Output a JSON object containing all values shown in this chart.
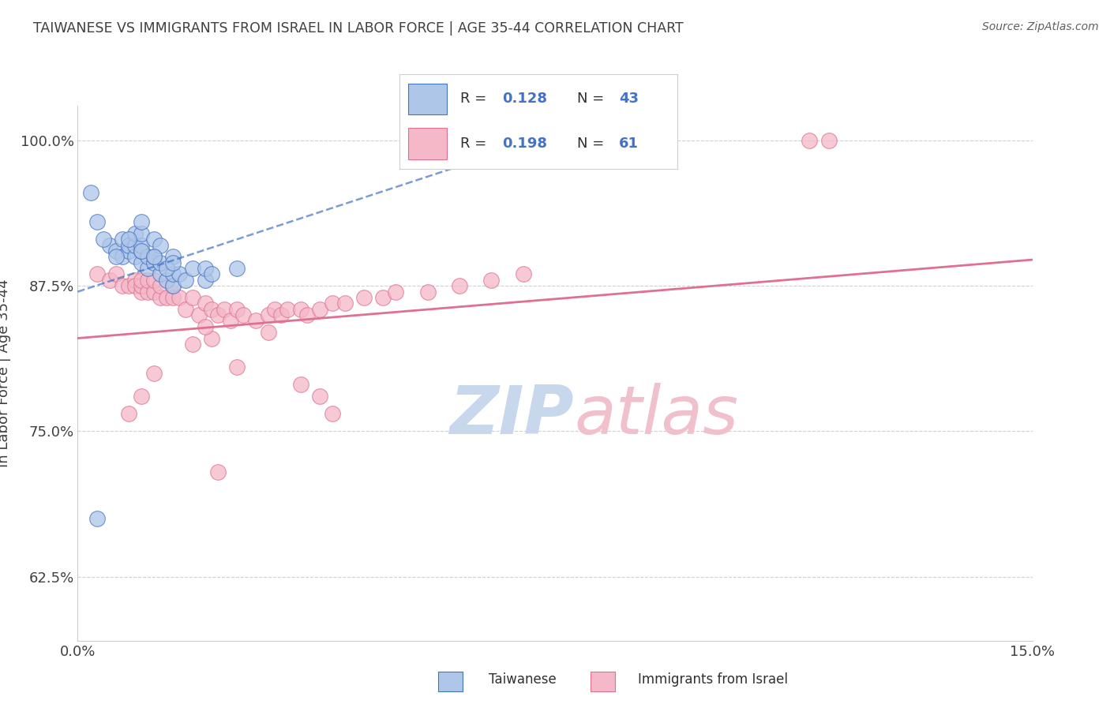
{
  "title": "TAIWANESE VS IMMIGRANTS FROM ISRAEL IN LABOR FORCE | AGE 35-44 CORRELATION CHART",
  "source_text": "Source: ZipAtlas.com",
  "ylabel": "In Labor Force | Age 35-44",
  "xlim": [
    0.0,
    15.0
  ],
  "ylim": [
    57.0,
    103.0
  ],
  "yticks": [
    62.5,
    75.0,
    87.5,
    100.0
  ],
  "ytick_labels": [
    "62.5%",
    "75.0%",
    "87.5%",
    "100.0%"
  ],
  "xticks": [
    0.0,
    15.0
  ],
  "xtick_labels": [
    "0.0%",
    "15.0%"
  ],
  "blue_color": "#aec6e8",
  "blue_edge_color": "#4472c4",
  "pink_color": "#f4b8c8",
  "pink_edge_color": "#e07090",
  "blue_line_color": "#4472c4",
  "pink_line_color": "#e07090",
  "label_color": "#4472c4",
  "title_color": "#404040",
  "grid_color": "#d0d0d0",
  "blue_x": [
    0.2,
    0.3,
    0.5,
    0.6,
    0.7,
    0.7,
    0.8,
    0.8,
    0.9,
    0.9,
    0.9,
    1.0,
    1.0,
    1.0,
    1.0,
    1.0,
    1.1,
    1.1,
    1.2,
    1.2,
    1.2,
    1.3,
    1.3,
    1.3,
    1.4,
    1.5,
    1.5,
    1.5,
    1.6,
    1.7,
    1.8,
    2.0,
    2.0,
    2.1,
    0.4,
    0.6,
    0.8,
    1.0,
    1.2,
    1.4,
    1.5,
    2.5,
    0.3
  ],
  "blue_y": [
    95.5,
    93.0,
    91.0,
    90.5,
    91.5,
    90.0,
    90.5,
    91.0,
    90.0,
    91.0,
    92.0,
    89.5,
    90.5,
    91.0,
    92.0,
    93.0,
    89.0,
    90.0,
    89.5,
    90.0,
    91.5,
    88.5,
    89.5,
    91.0,
    88.0,
    87.5,
    88.5,
    90.0,
    88.5,
    88.0,
    89.0,
    88.0,
    89.0,
    88.5,
    91.5,
    90.0,
    91.5,
    90.5,
    90.0,
    89.0,
    89.5,
    89.0,
    67.5
  ],
  "pink_x": [
    0.3,
    0.5,
    0.6,
    0.7,
    0.8,
    0.9,
    0.9,
    1.0,
    1.0,
    1.0,
    1.1,
    1.1,
    1.2,
    1.2,
    1.3,
    1.3,
    1.4,
    1.5,
    1.5,
    1.6,
    1.7,
    1.8,
    1.9,
    2.0,
    2.1,
    2.2,
    2.3,
    2.4,
    2.5,
    2.6,
    2.8,
    3.0,
    3.1,
    3.2,
    3.3,
    3.5,
    3.6,
    3.8,
    4.0,
    4.2,
    4.5,
    4.8,
    5.0,
    5.5,
    6.0,
    6.5,
    7.0,
    1.8,
    2.1,
    2.0,
    3.0,
    1.2,
    1.0,
    0.8,
    2.5,
    3.5,
    4.0,
    3.8,
    11.5,
    11.8,
    2.2
  ],
  "pink_y": [
    88.5,
    88.0,
    88.5,
    87.5,
    87.5,
    88.0,
    87.5,
    87.0,
    87.5,
    88.0,
    87.0,
    88.0,
    87.0,
    88.0,
    86.5,
    87.5,
    86.5,
    86.5,
    87.5,
    86.5,
    85.5,
    86.5,
    85.0,
    86.0,
    85.5,
    85.0,
    85.5,
    84.5,
    85.5,
    85.0,
    84.5,
    85.0,
    85.5,
    85.0,
    85.5,
    85.5,
    85.0,
    85.5,
    86.0,
    86.0,
    86.5,
    86.5,
    87.0,
    87.0,
    87.5,
    88.0,
    88.5,
    82.5,
    83.0,
    84.0,
    83.5,
    80.0,
    78.0,
    76.5,
    80.5,
    79.0,
    76.5,
    78.0,
    100.0,
    100.0,
    71.5
  ],
  "watermark_zip_color": "#c8d8ec",
  "watermark_atlas_color": "#f0c0cc"
}
